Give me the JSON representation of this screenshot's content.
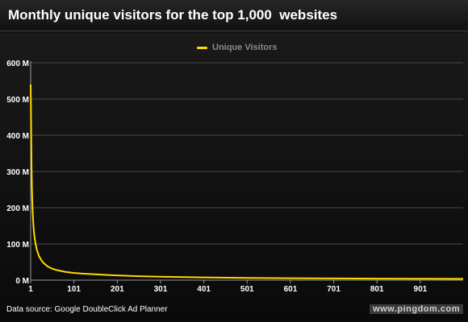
{
  "header": {
    "title": "Monthly unique visitors for the top 1,000  websites"
  },
  "footer": {
    "source": "Data source: Google DoubleClick Ad Planner",
    "watermark": "www.pingdom.com"
  },
  "colors": {
    "background": "#000000",
    "line": "#ffd800",
    "grid": "#4a4a4a"
  },
  "chart_data": {
    "type": "line",
    "title": "Monthly unique visitors for the top 1,000  websites",
    "xlabel": "",
    "ylabel": "",
    "legend": {
      "position": "top-center",
      "entries": [
        "Unique Visitors"
      ]
    },
    "grid": true,
    "xlim": [
      1,
      1000
    ],
    "ylim": [
      0,
      600000000
    ],
    "y_ticks": [
      0,
      100000000,
      200000000,
      300000000,
      400000000,
      500000000,
      600000000
    ],
    "y_tick_labels": [
      "0 M",
      "100 M",
      "200 M",
      "300 M",
      "400 M",
      "500 M",
      "600 M"
    ],
    "x_ticks": [
      1,
      101,
      201,
      301,
      401,
      501,
      601,
      701,
      801,
      901
    ],
    "x_tick_labels": [
      "1",
      "101",
      "201",
      "301",
      "401",
      "501",
      "601",
      "701",
      "801",
      "901"
    ],
    "series": [
      {
        "name": "Unique Visitors",
        "x": [
          1,
          2,
          3,
          4,
          5,
          6,
          7,
          8,
          10,
          12,
          15,
          20,
          25,
          30,
          40,
          50,
          60,
          80,
          100,
          120,
          150,
          200,
          250,
          300,
          400,
          500,
          600,
          700,
          800,
          900,
          1000
        ],
        "y": [
          540000000,
          440000000,
          310000000,
          250000000,
          210000000,
          180000000,
          160000000,
          140000000,
          118000000,
          103000000,
          85000000,
          67000000,
          56000000,
          48000000,
          38000000,
          32000000,
          28000000,
          23000000,
          20000000,
          18000000,
          16000000,
          13000000,
          11000000,
          9500000,
          7500000,
          6200000,
          5300000,
          4700000,
          4200000,
          3800000,
          3500000
        ]
      }
    ]
  }
}
